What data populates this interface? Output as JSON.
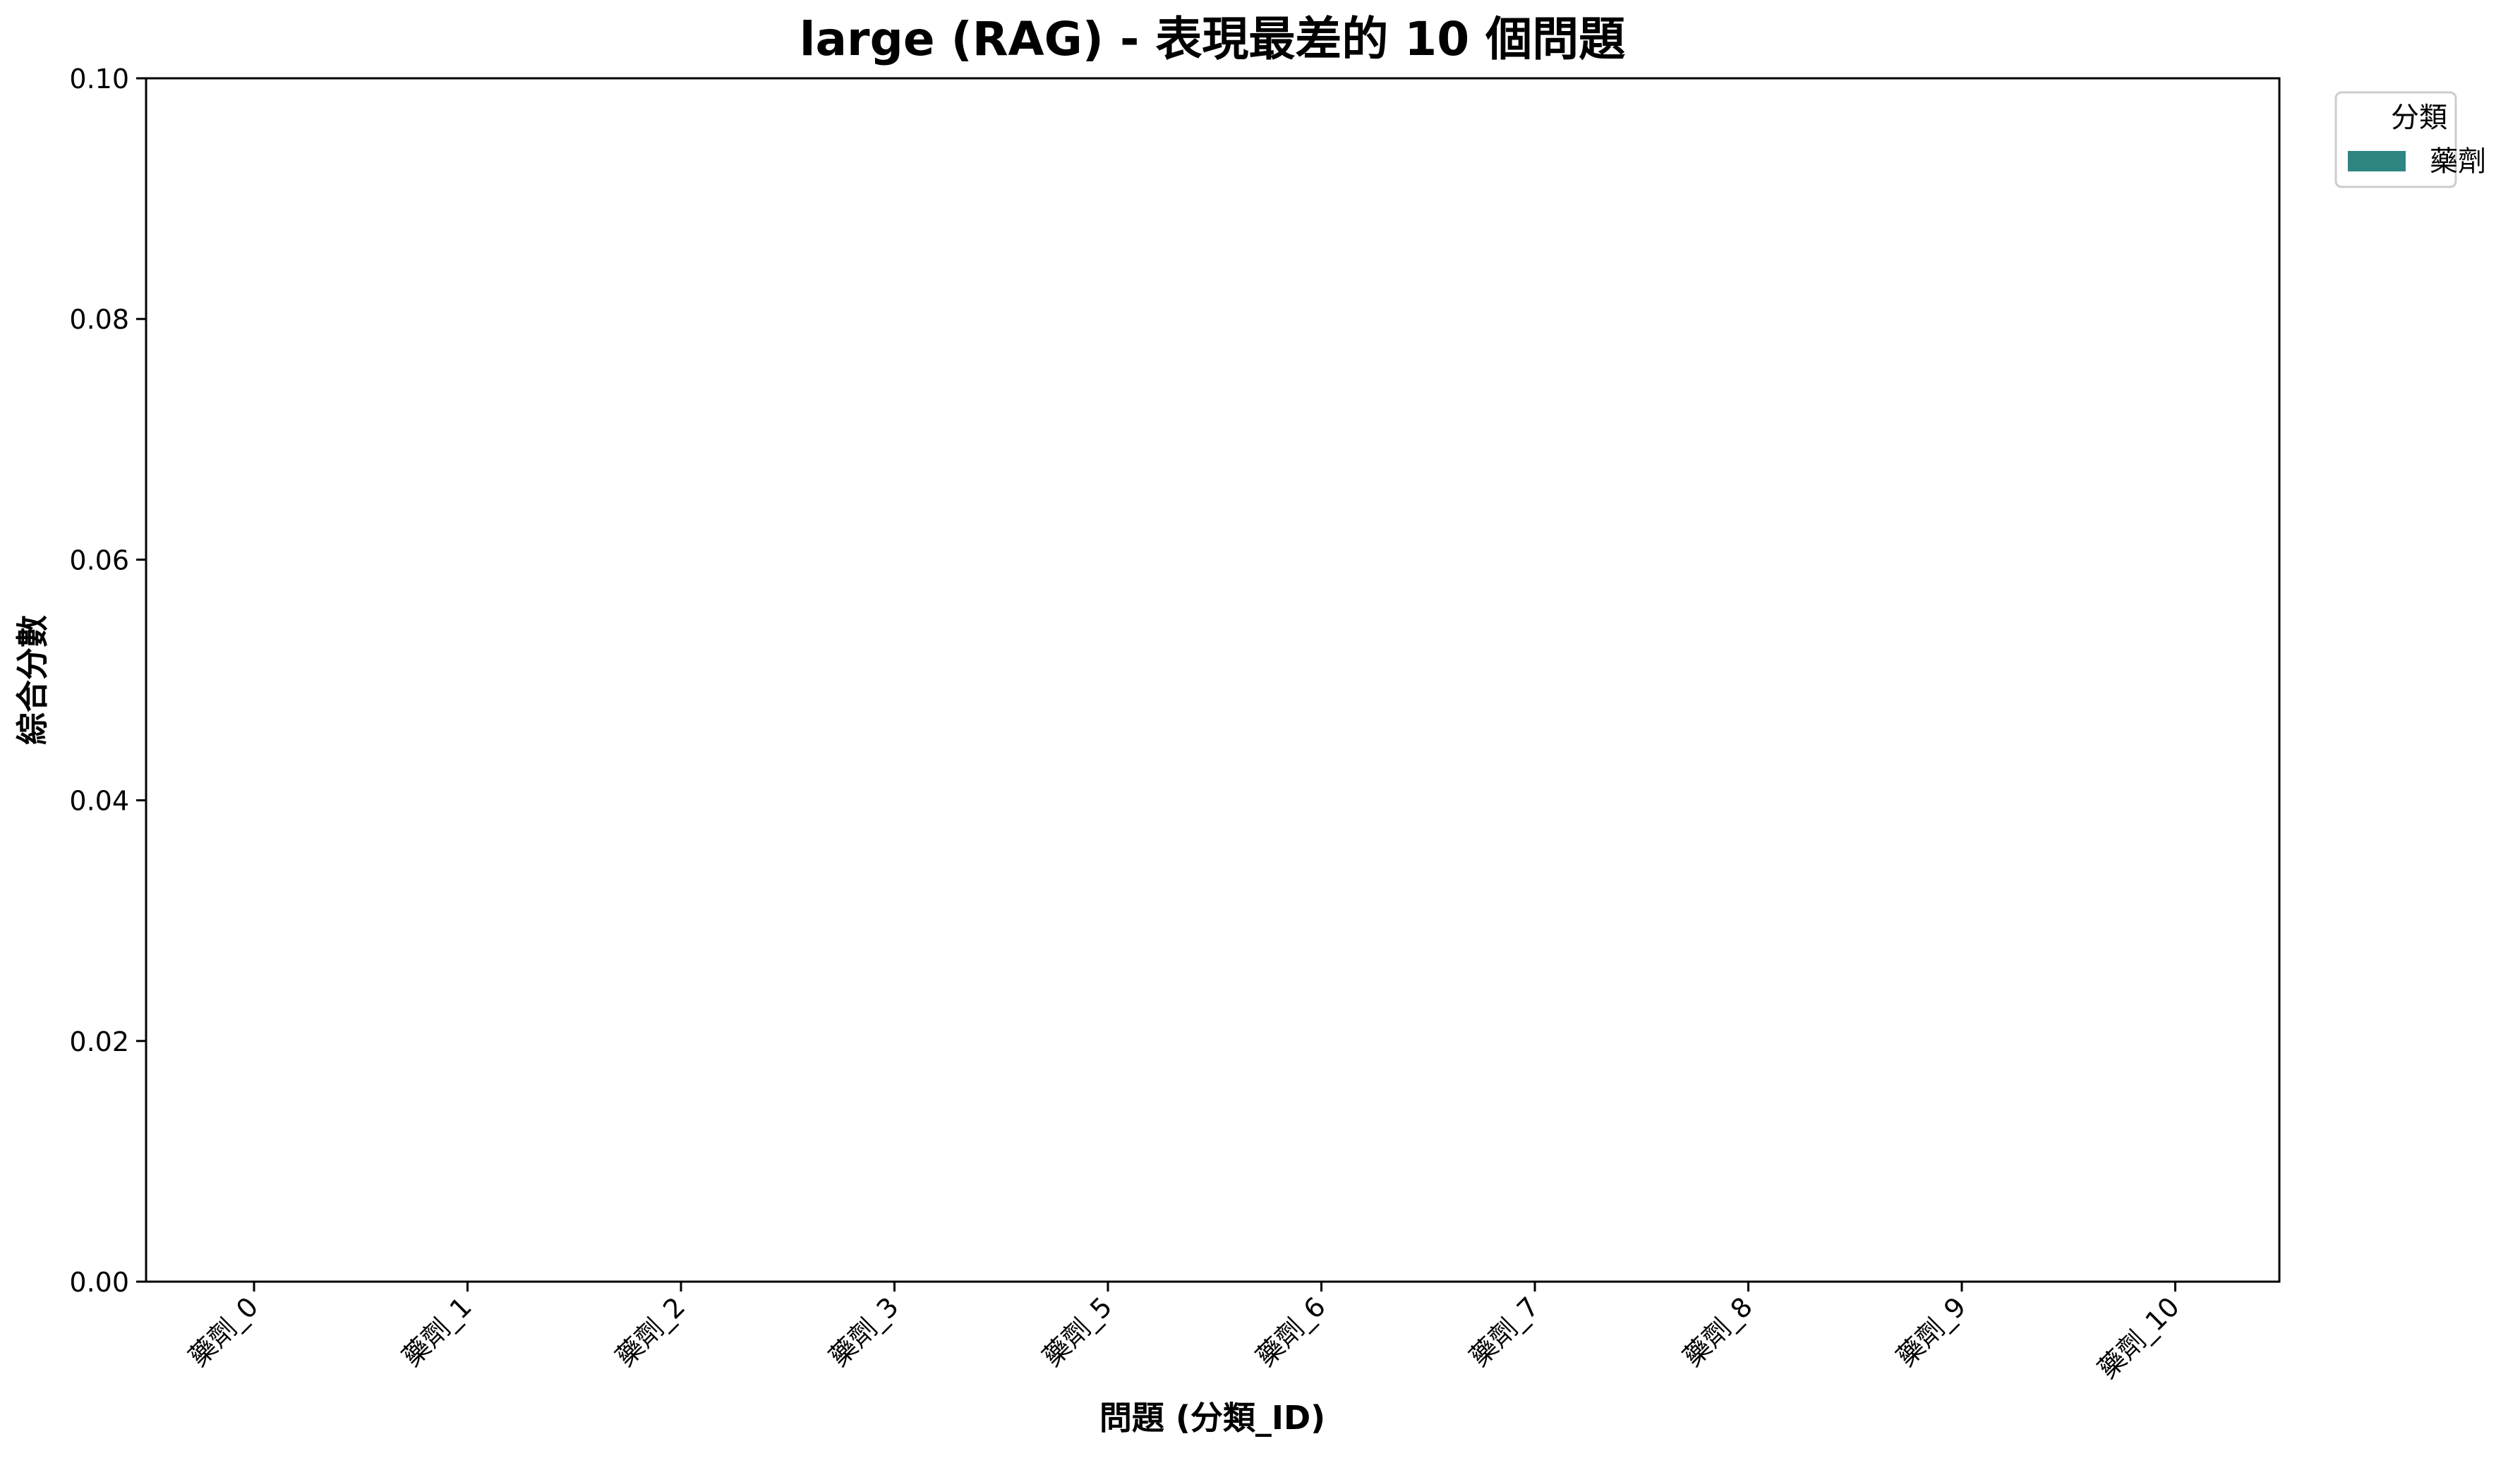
{
  "chart_data": {
    "type": "bar",
    "title": "large (RAG) - 表現最差的 10 個問題",
    "xlabel": "問題 (分類_ID)",
    "ylabel": "綜合分數",
    "categories": [
      "藥劑_0",
      "藥劑_1",
      "藥劑_2",
      "藥劑_3",
      "藥劑_5",
      "藥劑_6",
      "藥劑_7",
      "藥劑_8",
      "藥劑_9",
      "藥劑_10"
    ],
    "series": [
      {
        "name": "藥劑",
        "values": [
          0,
          0,
          0,
          0,
          0,
          0,
          0,
          0,
          0,
          0
        ]
      }
    ],
    "ylim": [
      0,
      0.1
    ],
    "yticks": [
      "0.00",
      "0.02",
      "0.04",
      "0.06",
      "0.08",
      "0.10"
    ],
    "grid": false,
    "legend": {
      "title": "分類",
      "position": "upper-right-outside"
    },
    "colors": {
      "bar": "#2e8582",
      "axis": "#000000",
      "background": "#ffffff"
    }
  }
}
